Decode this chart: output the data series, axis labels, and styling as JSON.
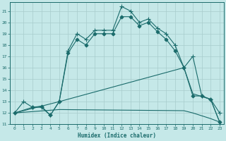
{
  "xlabel": "Humidex (Indice chaleur)",
  "xlim": [
    -0.5,
    23.5
  ],
  "ylim": [
    11,
    21.8
  ],
  "yticks": [
    11,
    12,
    13,
    14,
    15,
    16,
    17,
    18,
    19,
    20,
    21
  ],
  "xticks": [
    0,
    1,
    2,
    3,
    4,
    5,
    6,
    7,
    8,
    9,
    10,
    11,
    12,
    13,
    14,
    15,
    16,
    17,
    18,
    19,
    20,
    21,
    22,
    23
  ],
  "bg_color": "#c5e8e8",
  "line_color": "#1a6b6b",
  "grid_color": "#a8cccc",
  "lines": [
    {
      "x": [
        0,
        1,
        2,
        3,
        4,
        5,
        6,
        7,
        8,
        9,
        10,
        11,
        12,
        13,
        14,
        15,
        16,
        17,
        18,
        19,
        20,
        21,
        22,
        23
      ],
      "y": [
        12.0,
        13.0,
        12.5,
        12.5,
        11.8,
        13.0,
        17.5,
        19.0,
        18.5,
        19.3,
        19.3,
        19.3,
        21.4,
        21.0,
        20.0,
        20.3,
        19.5,
        19.0,
        18.0,
        16.0,
        17.0,
        13.5,
        13.2,
        12.0
      ],
      "marker": "+",
      "markersize": 4
    },
    {
      "x": [
        0,
        2,
        3,
        4,
        5,
        6,
        7,
        8,
        9,
        10,
        11,
        12,
        13,
        14,
        15,
        16,
        17,
        18,
        19,
        20,
        21,
        22,
        23
      ],
      "y": [
        12.0,
        12.5,
        12.6,
        11.8,
        13.0,
        17.3,
        18.5,
        18.0,
        19.0,
        19.0,
        19.0,
        20.5,
        20.5,
        19.7,
        20.0,
        19.2,
        18.5,
        17.5,
        16.0,
        13.5,
        13.5,
        13.2,
        11.2
      ],
      "marker": "D",
      "markersize": 2.5
    },
    {
      "x": [
        0,
        5,
        19,
        20,
        22,
        23
      ],
      "y": [
        12.0,
        13.0,
        16.0,
        13.7,
        13.2,
        11.2
      ],
      "marker": null,
      "markersize": null
    },
    {
      "x": [
        0,
        5,
        19,
        20,
        22,
        23
      ],
      "y": [
        12.0,
        12.3,
        12.2,
        12.0,
        11.5,
        11.2
      ],
      "marker": null,
      "markersize": null
    }
  ]
}
